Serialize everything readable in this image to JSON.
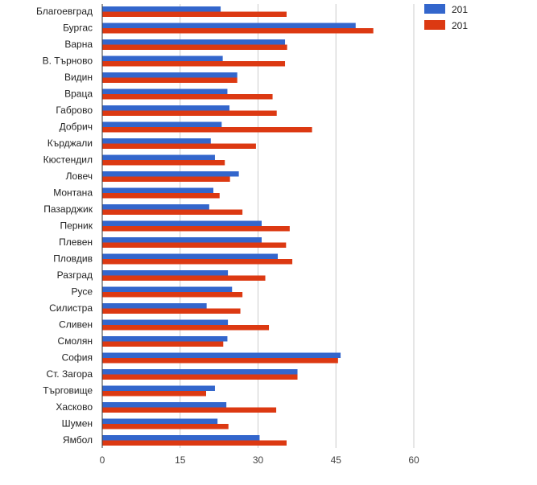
{
  "chart_data": {
    "type": "bar",
    "orientation": "horizontal",
    "categories": [
      "Благоевград",
      "Бургас",
      "Варна",
      "В. Търново",
      "Видин",
      "Враца",
      "Габрово",
      "Добрич",
      "Кърджали",
      "Кюстендил",
      "Ловеч",
      "Монтана",
      "Пазарджик",
      "Перник",
      "Плевен",
      "Пловдив",
      "Разград",
      "Русе",
      "Силистра",
      "Сливен",
      "Смолян",
      "София",
      "Ст. Загора",
      "Търговище",
      "Хасково",
      "Шумен",
      "Ямбол"
    ],
    "series": [
      {
        "name": "201",
        "color": "#3366cc",
        "values": [
          22.8,
          48.8,
          35.2,
          23.2,
          26.0,
          24.1,
          24.5,
          23.0,
          20.9,
          21.7,
          26.3,
          21.4,
          20.6,
          30.7,
          30.7,
          33.8,
          24.2,
          25.0,
          20.1,
          24.2,
          24.1,
          45.9,
          37.6,
          21.7,
          23.9,
          22.2,
          30.3
        ]
      },
      {
        "name": "201",
        "color": "#dc3912",
        "values": [
          35.5,
          52.2,
          35.6,
          35.2,
          26.0,
          32.8,
          33.6,
          40.4,
          29.6,
          23.6,
          24.6,
          22.6,
          27.0,
          36.1,
          35.4,
          36.6,
          31.4,
          27.0,
          26.6,
          32.1,
          23.3,
          45.4,
          37.6,
          20.0,
          33.5,
          24.3,
          35.5
        ]
      }
    ],
    "x_ticks": [
      "0",
      "15",
      "30",
      "45",
      "60"
    ],
    "xlim": [
      0,
      60
    ],
    "grid": true,
    "legend_position": "top-right"
  }
}
